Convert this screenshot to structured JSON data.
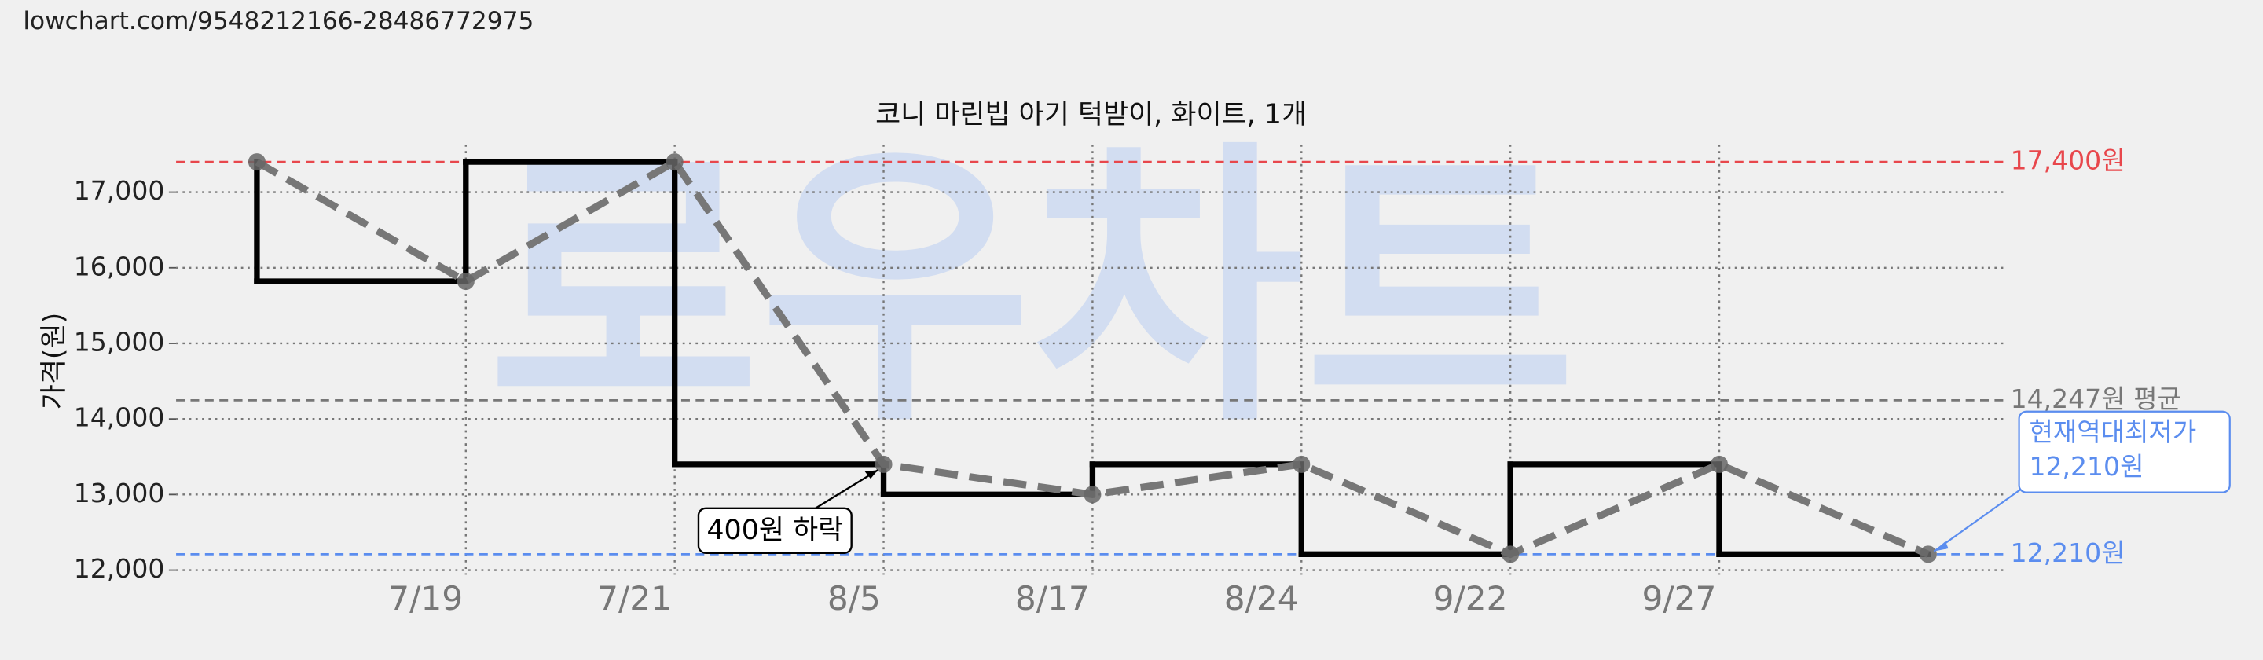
{
  "header": "lowchart.com/9548212166-28486772975",
  "chart_data": {
    "type": "line",
    "title": "코니 마린빕 아기 턱받이, 화이트, 1개",
    "y_label": "가격(원)",
    "watermark": "로우차트",
    "categories": [
      null,
      "7/19",
      "7/21",
      "8/5",
      "8/17",
      "8/24",
      "9/22",
      "9/27",
      null
    ],
    "series": [
      {
        "name": "가격",
        "color": "#000000",
        "values": [
          17400,
          15820,
          17400,
          13400,
          13000,
          13400,
          12210,
          13400,
          12210
        ]
      }
    ],
    "ylim": [
      11940,
      17630
    ],
    "yticks": [
      {
        "value": 12000,
        "label": "12,000"
      },
      {
        "value": 13000,
        "label": "13,000"
      },
      {
        "value": 14000,
        "label": "14,000"
      },
      {
        "value": 15000,
        "label": "15,000"
      },
      {
        "value": 16000,
        "label": "16,000"
      },
      {
        "value": 17000,
        "label": "17,000"
      }
    ],
    "grid": true,
    "reference_lines": [
      {
        "value": 17400,
        "label": "17,400원",
        "color": "#e8474c"
      },
      {
        "value": 14247,
        "label": "14,247원 평균",
        "color": "#777777"
      },
      {
        "value": 12210,
        "label": "12,210원",
        "color": "#5b8def"
      }
    ],
    "annotations": [
      {
        "text": "400원 하락"
      },
      {
        "text": [
          "현재역대최저가",
          "12,210원"
        ],
        "color": "#5b8def"
      }
    ]
  }
}
